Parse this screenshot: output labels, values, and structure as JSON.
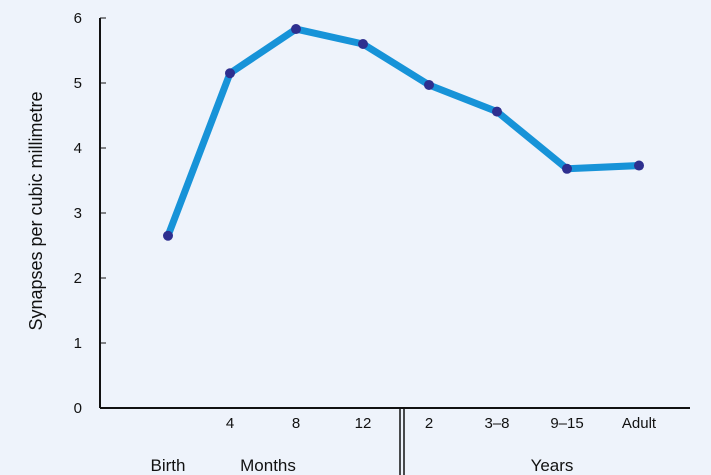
{
  "chart_data": {
    "type": "line",
    "title": "",
    "xlabel": "",
    "ylabel": "Synapses per cubic millimetre",
    "ylim": [
      0,
      6
    ],
    "y_ticks": [
      "0",
      "1",
      "2",
      "3",
      "4",
      "5",
      "6"
    ],
    "categories": [
      "",
      "4",
      "8",
      "12",
      "2",
      "3–8",
      "9–15",
      "Adult"
    ],
    "group_labels": [
      "Birth",
      "Months",
      "Years"
    ],
    "grid": false,
    "series": [
      {
        "values": [
          2.65,
          5.15,
          5.83,
          5.6,
          4.97,
          4.56,
          3.68,
          3.73
        ]
      }
    ],
    "colors": {
      "line": "#1793d8",
      "marker": "#2e2f8f",
      "axis": "#111111",
      "background": "#eef3fb"
    }
  }
}
